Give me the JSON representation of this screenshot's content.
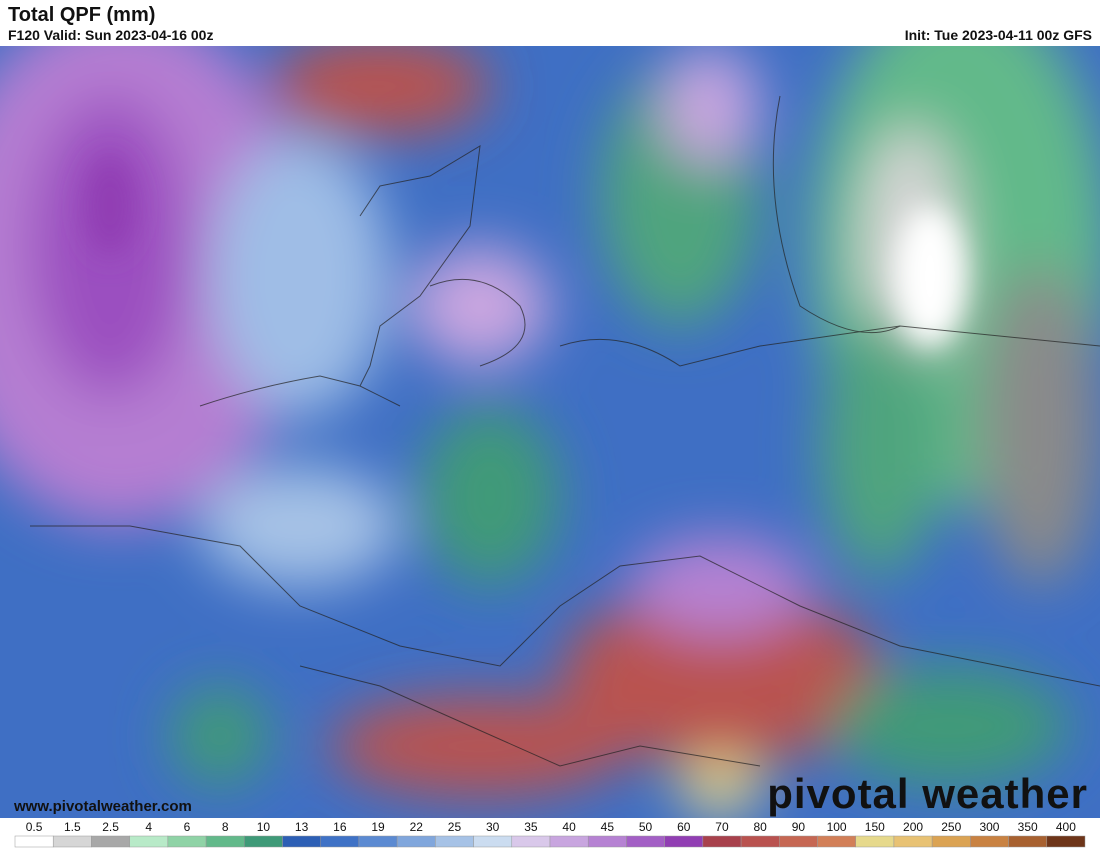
{
  "header": {
    "title": "Total QPF (mm)",
    "valid": "F120 Valid: Sun 2023-04-16 00z",
    "init": "Init: Tue 2023-04-11 00z GFS"
  },
  "footer": {
    "website": "www.pivotalweather.com",
    "logo": "pivotal weather"
  },
  "colorbar": {
    "labels": [
      "0.5",
      "1.5",
      "2.5",
      "4",
      "6",
      "8",
      "10",
      "13",
      "16",
      "19",
      "22",
      "25",
      "30",
      "35",
      "40",
      "45",
      "50",
      "60",
      "70",
      "80",
      "90",
      "100",
      "150",
      "200",
      "250",
      "300",
      "350",
      "400"
    ],
    "colors": [
      "#ffffff",
      "#d6d6d6",
      "#a8a8a8",
      "#b8eac8",
      "#8fd3a6",
      "#62b98a",
      "#3f9a78",
      "#2d5fb5",
      "#3f72c6",
      "#5b8ad2",
      "#80a6dc",
      "#a6c2e6",
      "#cbdcf0",
      "#d9c8ea",
      "#c8a5df",
      "#b682d3",
      "#a35fc5",
      "#913eb3",
      "#a8414c",
      "#b9524f",
      "#c66753",
      "#d27f58",
      "#e6d98c",
      "#e8c274",
      "#dba353",
      "#c98242",
      "#a86130",
      "#6e3519"
    ]
  }
}
